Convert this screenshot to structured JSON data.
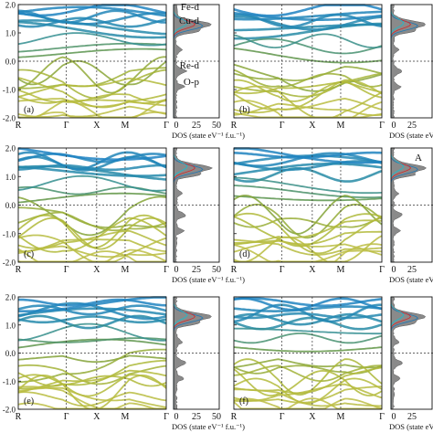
{
  "figure": {
    "legend": [
      {
        "label": "Fe-d",
        "color": "#1f77b4"
      },
      {
        "label": "Cu-d",
        "color": "#d62728"
      },
      {
        "label": "Re-d",
        "color": "#ff9f0e"
      },
      {
        "label": "O-p",
        "color": "#17becf"
      }
    ],
    "dos_axis_label": "DOS (state eV⁻¹ f.u.⁻¹)",
    "annotation_d": "A"
  },
  "chart_data": [
    {
      "panel": "(a)",
      "type": "line",
      "kpath": [
        "R",
        "Γ",
        "X",
        "M",
        "Γ"
      ],
      "ylim": [
        -2.0,
        2.0
      ],
      "yticks": [
        "-2.0",
        "-1.0",
        "0.0",
        "1.0",
        "2.0"
      ],
      "dos_xticks": [
        "0",
        "25",
        "50"
      ],
      "grid": false
    },
    {
      "panel": "(b)",
      "type": "line",
      "kpath": [
        "R",
        "Γ",
        "X",
        "M",
        "Γ"
      ],
      "ylim": [
        -2.0,
        2.0
      ],
      "yticks": [],
      "dos_xticks": [
        "0",
        "25"
      ],
      "grid": false
    },
    {
      "panel": "(c)",
      "type": "line",
      "kpath": [
        "R",
        "Γ",
        "X",
        "M",
        "Γ"
      ],
      "ylim": [
        -2.0,
        2.0
      ],
      "yticks": [
        "-2.0",
        "-1.0",
        "0.0",
        "1.0",
        "2.0"
      ],
      "dos_xticks": [
        "0",
        "25",
        "50"
      ],
      "grid": false
    },
    {
      "panel": "(d)",
      "type": "line",
      "kpath": [
        "R",
        "Γ",
        "X",
        "M",
        "Γ"
      ],
      "ylim": [
        -2.0,
        2.0
      ],
      "yticks": [],
      "dos_xticks": [
        "0",
        "25"
      ],
      "grid": false
    },
    {
      "panel": "(e)",
      "type": "line",
      "kpath": [
        "R",
        "Γ",
        "X",
        "M",
        "Γ"
      ],
      "ylim": [
        -2.0,
        2.0
      ],
      "yticks": [
        "-2.0",
        "-1.0",
        "0.0",
        "1.0",
        "2.0"
      ],
      "dos_xticks": [
        "0",
        "25",
        "50"
      ],
      "grid": false
    },
    {
      "panel": "(f)",
      "type": "line",
      "kpath": [
        "R",
        "Γ",
        "X",
        "M",
        "Γ"
      ],
      "ylim": [
        -2.0,
        2.0
      ],
      "yticks": [],
      "dos_xticks": [
        "0",
        "25"
      ],
      "grid": false
    }
  ]
}
